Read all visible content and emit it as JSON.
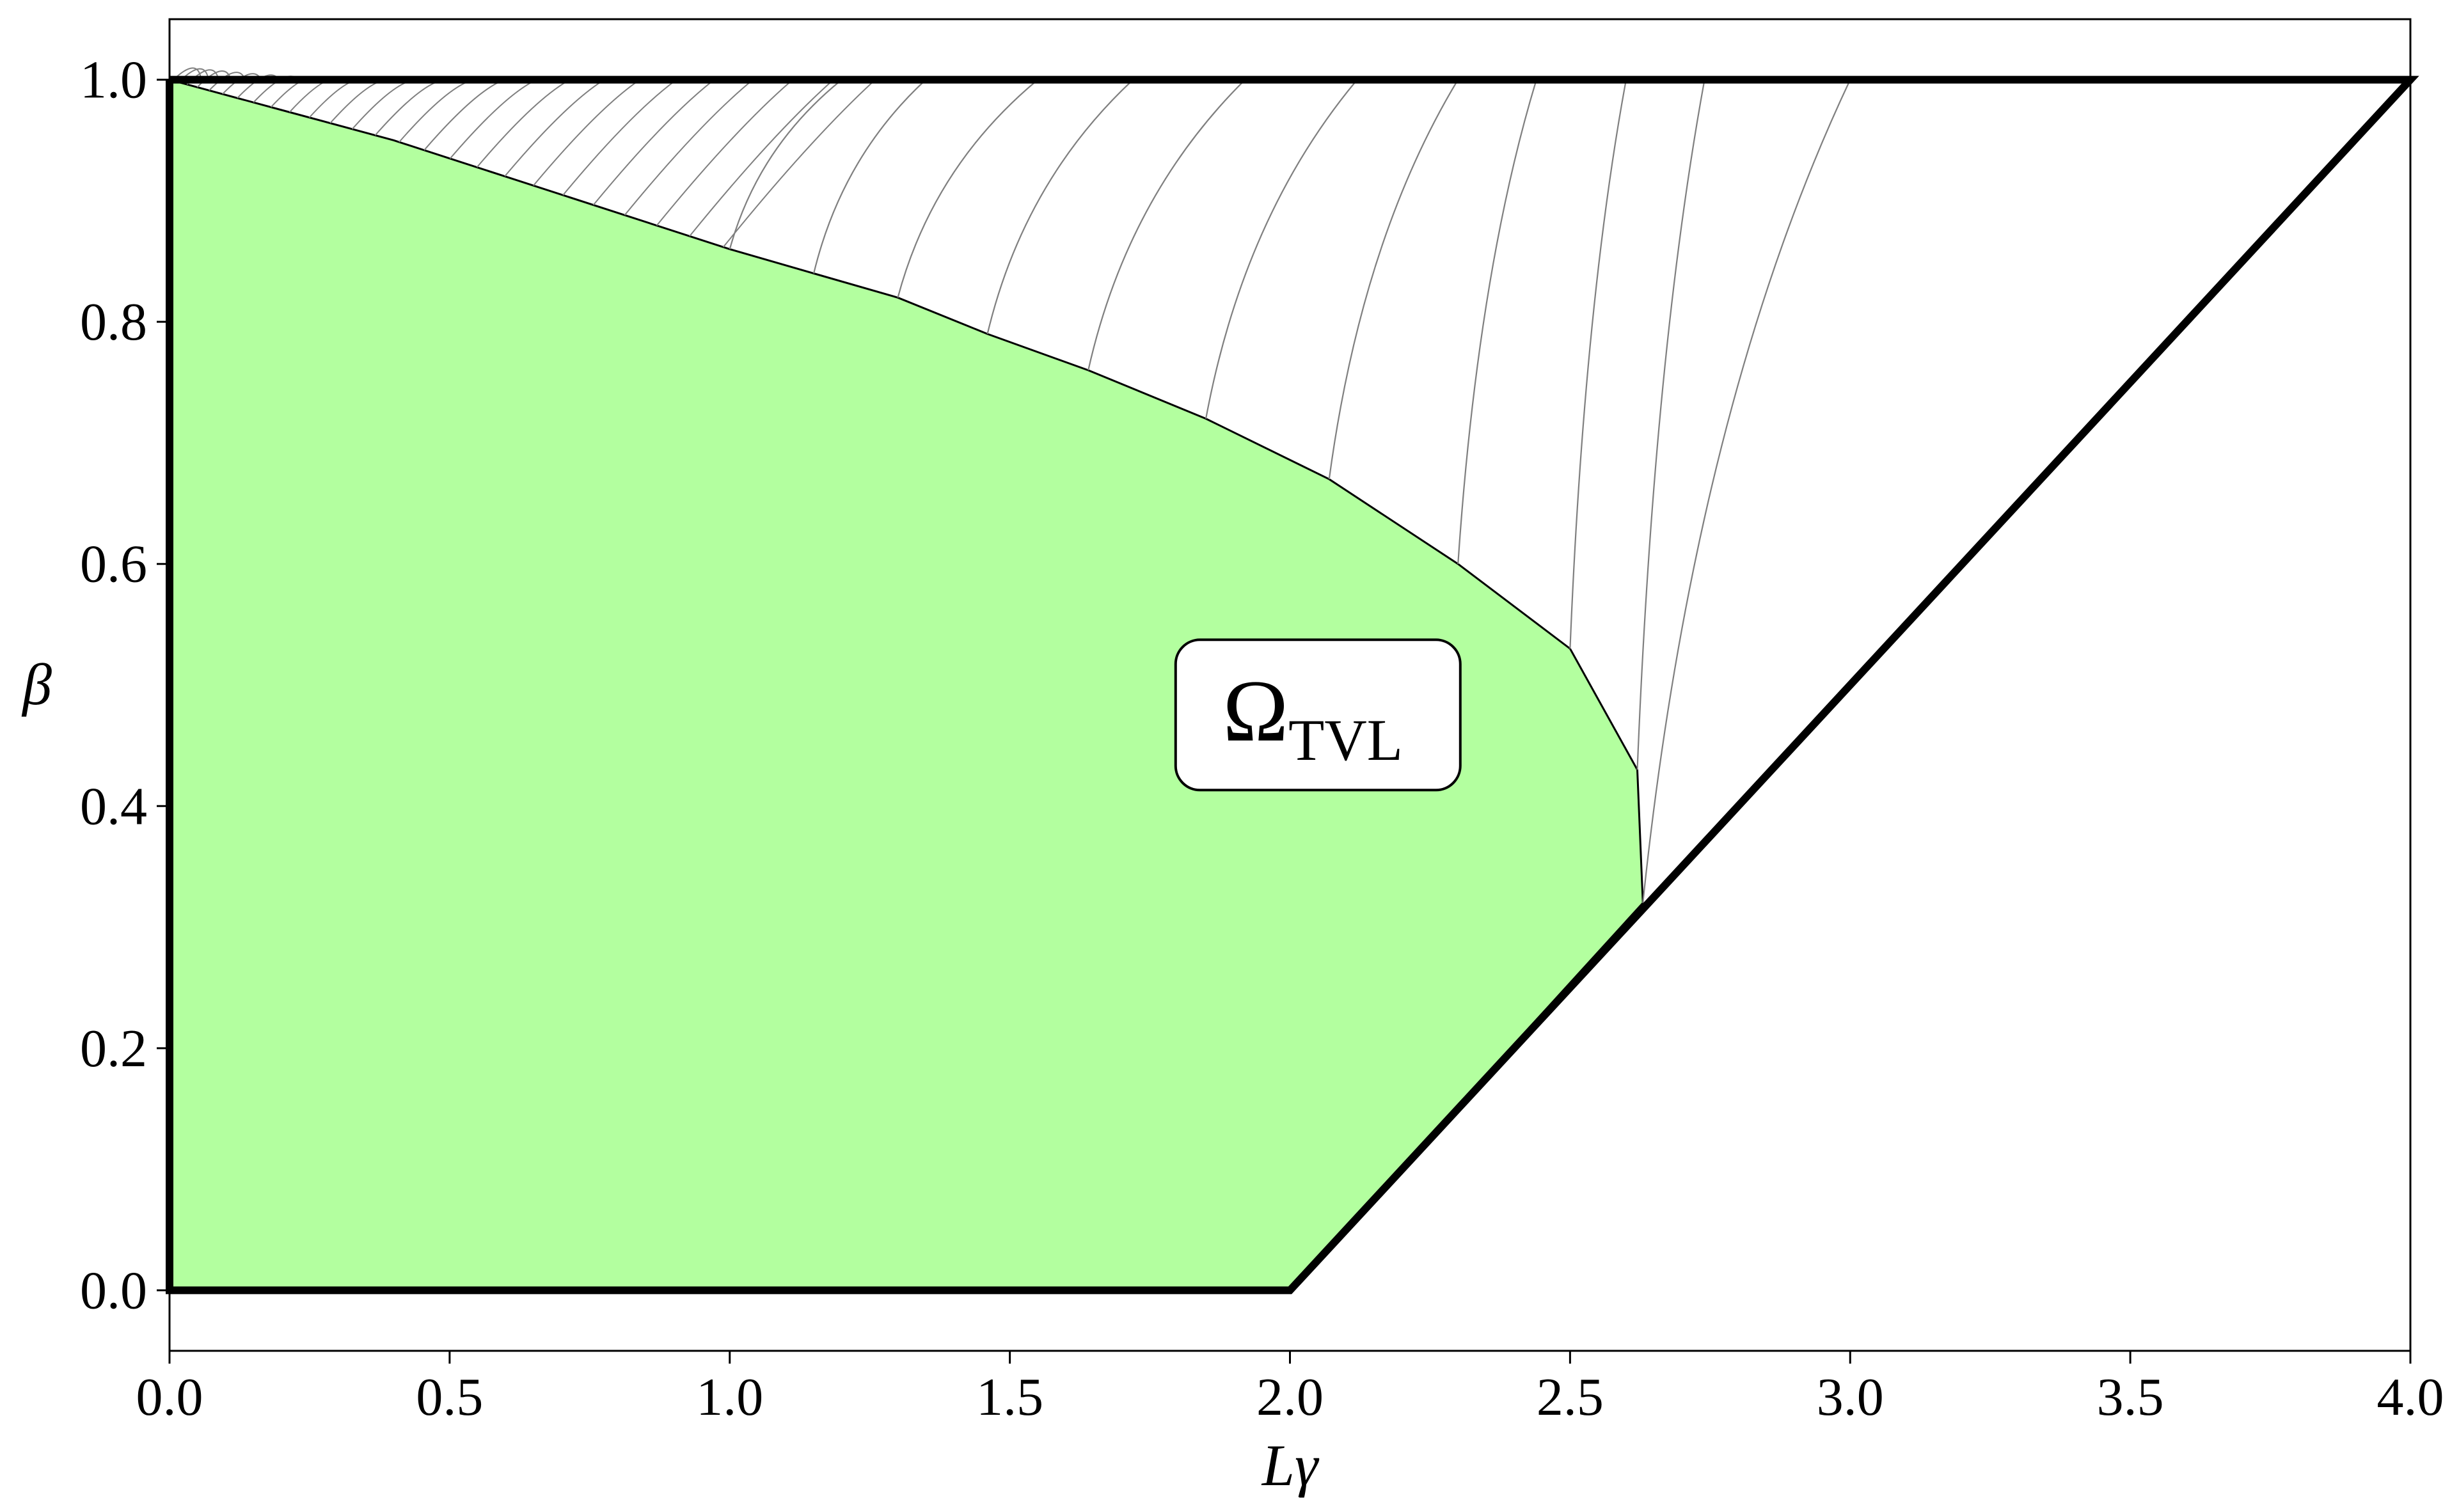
{
  "chart_data": {
    "type": "area",
    "title": "",
    "xlabel": "Lγ",
    "ylabel": "β",
    "xlim": [
      0.0,
      4.0
    ],
    "ylim": [
      -0.05,
      1.05
    ],
    "grid": false,
    "xticks": [
      "0.0",
      "0.5",
      "1.0",
      "1.5",
      "2.0",
      "2.5",
      "3.0",
      "3.5",
      "4.0"
    ],
    "yticks": [
      "0.0",
      "0.2",
      "0.4",
      "0.6",
      "0.8",
      "1.0"
    ],
    "annotation": {
      "text": "Ω",
      "subscript": "TVL",
      "x": 2.05,
      "y": 0.47
    },
    "colors": {
      "region_fill": "#b3ff9f",
      "boundary": "#000000",
      "contours": "#7f7f7f"
    },
    "region": {
      "x": [
        0.0,
        0.0,
        2.0,
        2.63,
        2.62,
        2.5,
        2.3,
        2.07,
        1.85,
        1.64,
        1.46,
        1.3,
        1.15,
        1.0,
        0.8,
        0.6,
        0.4,
        0.2,
        0.0
      ],
      "y": [
        1.0,
        0.0,
        0.0,
        0.32,
        0.43,
        0.53,
        0.6,
        0.67,
        0.72,
        0.76,
        0.79,
        0.82,
        0.84,
        0.86,
        0.89,
        0.92,
        0.95,
        0.975,
        1.0
      ]
    },
    "outer_boundary": {
      "x": [
        0.0,
        4.0,
        2.0,
        0.0,
        0.0
      ],
      "y": [
        1.0,
        1.0,
        0.0,
        0.0,
        1.0
      ]
    },
    "contours": [
      {
        "x_top": 1.2,
        "x_bottom": 1.0
      },
      {
        "x_top": 1.35,
        "x_bottom": 1.15
      },
      {
        "x_top": 1.55,
        "x_bottom": 1.3
      },
      {
        "x_top": 1.72,
        "x_bottom": 1.46
      },
      {
        "x_top": 1.92,
        "x_bottom": 1.64
      },
      {
        "x_top": 2.12,
        "x_bottom": 1.85
      },
      {
        "x_top": 2.3,
        "x_bottom": 2.07
      },
      {
        "x_top": 2.44,
        "x_bottom": 2.3
      },
      {
        "x_top": 2.6,
        "x_bottom": 2.5
      },
      {
        "x_top": 2.74,
        "x_bottom": 2.62
      },
      {
        "x_top": 3.0,
        "x_bottom": 2.63
      }
    ]
  }
}
